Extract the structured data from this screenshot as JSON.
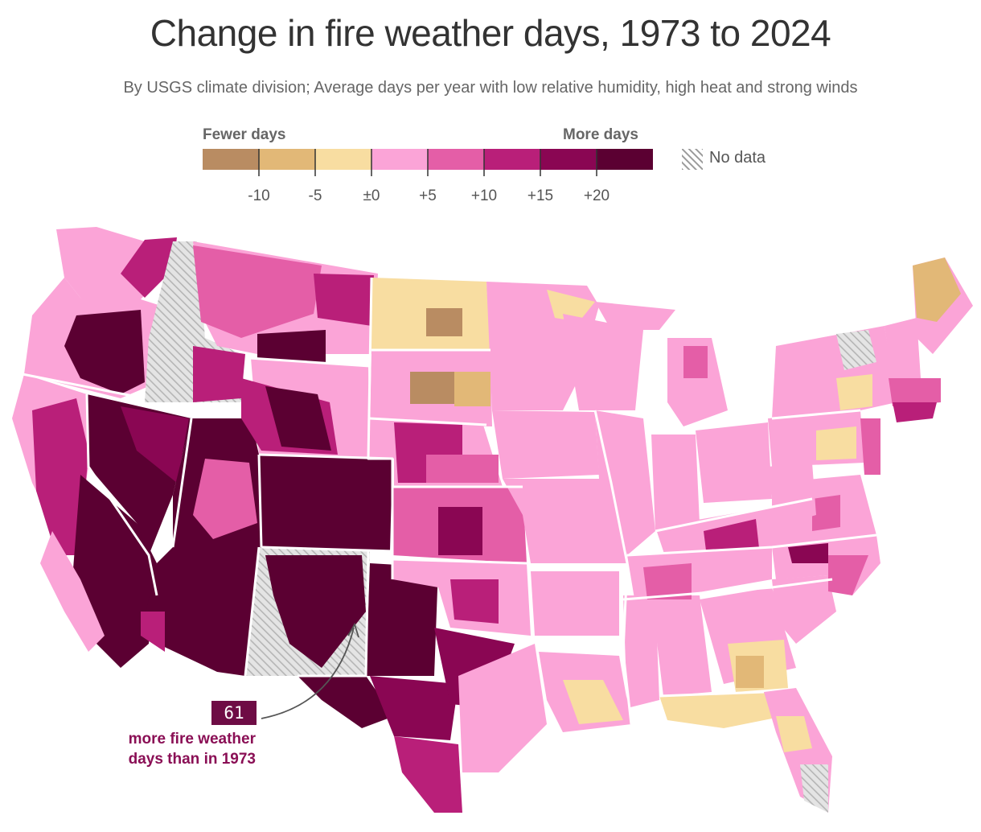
{
  "title": "Change in fire weather days, 1973 to 2024",
  "subtitle": "By USGS climate division; Average days per year with low relative humidity, high heat and strong winds",
  "legend": {
    "left_label": "Fewer days",
    "right_label": "More days",
    "no_data_label": "No data",
    "ticks": [
      "-10",
      "-5",
      "±0",
      "+5",
      "+10",
      "+15",
      "+20"
    ],
    "colors": {
      "lt_minus10": "#b98c62",
      "minus10_minus5": "#e2b877",
      "minus5_0": "#f8dda1",
      "zero_plus5": "#fba4d7",
      "plus5_plus10": "#e45ea7",
      "plus10_plus15": "#b91f79",
      "plus15_plus20": "#8a0653",
      "gt_plus20": "#5b0032",
      "no_data": "#d8d8d8"
    }
  },
  "annotation": {
    "value": "61",
    "text": "more fire weather days than in 1973"
  }
}
